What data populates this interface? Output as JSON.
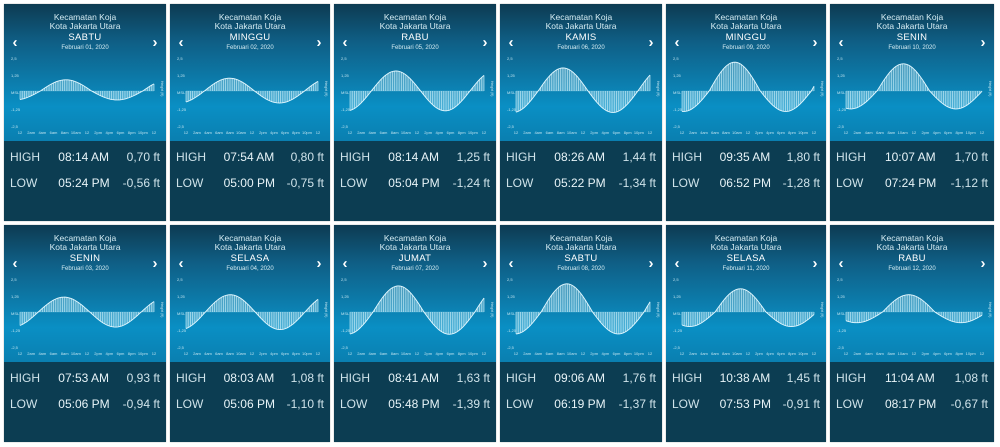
{
  "location": {
    "district": "Kecamatan Koja",
    "city": "Kota Jakarta Utara"
  },
  "labels": {
    "high": "HIGH",
    "low": "LOW"
  },
  "nav": {
    "prev_icon": "chevron-left-icon",
    "next_icon": "chevron-right-icon"
  },
  "colors": {
    "card_bg": "#0c3d52",
    "chart_top": "#0f5f86",
    "chart_bottom": "#0a8fc4",
    "curve": "#c9eef8"
  },
  "chart_data": {
    "type": "area",
    "y_ticks": [
      "2,5",
      "1,25",
      "MSL",
      "-1,25",
      "-2,5"
    ],
    "x_ticks": [
      "12",
      "2am",
      "4am",
      "6am",
      "8am",
      "10am",
      "12",
      "2pm",
      "4pm",
      "6pm",
      "8pm",
      "10pm",
      "12"
    ],
    "side_label": "Height (ft)"
  },
  "cards": [
    {
      "day": "SABTU",
      "date": "Februari 01, 2020",
      "high_time": "08:14 AM",
      "high_height": "0,70 ft",
      "low_time": "05:24 PM",
      "low_height": "-0,56 ft",
      "high_value": 0.7,
      "low_value": -0.56
    },
    {
      "day": "MINGGU",
      "date": "Februari 02, 2020",
      "high_time": "07:54 AM",
      "high_height": "0,80 ft",
      "low_time": "05:00 PM",
      "low_height": "-0,75 ft",
      "high_value": 0.8,
      "low_value": -0.75
    },
    {
      "day": "RABU",
      "date": "Februari 05, 2020",
      "high_time": "08:14 AM",
      "high_height": "1,25 ft",
      "low_time": "05:04 PM",
      "low_height": "-1,24 ft",
      "high_value": 1.25,
      "low_value": -1.24
    },
    {
      "day": "KAMIS",
      "date": "Februari 06, 2020",
      "high_time": "08:26 AM",
      "high_height": "1,44 ft",
      "low_time": "05:22 PM",
      "low_height": "-1,34 ft",
      "high_value": 1.44,
      "low_value": -1.34
    },
    {
      "day": "MINGGU",
      "date": "Februari 09, 2020",
      "high_time": "09:35 AM",
      "high_height": "1,80 ft",
      "low_time": "06:52 PM",
      "low_height": "-1,28 ft",
      "high_value": 1.8,
      "low_value": -1.28
    },
    {
      "day": "SENIN",
      "date": "Februari 10, 2020",
      "high_time": "10:07 AM",
      "high_height": "1,70 ft",
      "low_time": "07:24 PM",
      "low_height": "-1,12 ft",
      "high_value": 1.7,
      "low_value": -1.12
    },
    {
      "day": "SENIN",
      "date": "Februari 03, 2020",
      "high_time": "07:53 AM",
      "high_height": "0,93 ft",
      "low_time": "05:06 PM",
      "low_height": "-0,94 ft",
      "high_value": 0.93,
      "low_value": -0.94
    },
    {
      "day": "SELASA",
      "date": "Februari 04, 2020",
      "high_time": "08:03 AM",
      "high_height": "1,08 ft",
      "low_time": "05:06 PM",
      "low_height": "-1,10 ft",
      "high_value": 1.08,
      "low_value": -1.1
    },
    {
      "day": "JUMAT",
      "date": "Februari 07, 2020",
      "high_time": "08:41 AM",
      "high_height": "1,63 ft",
      "low_time": "05:48 PM",
      "low_height": "-1,39 ft",
      "high_value": 1.63,
      "low_value": -1.39
    },
    {
      "day": "SABTU",
      "date": "Februari 08, 2020",
      "high_time": "09:06 AM",
      "high_height": "1,76 ft",
      "low_time": "06:19 PM",
      "low_height": "-1,37 ft",
      "high_value": 1.76,
      "low_value": -1.37
    },
    {
      "day": "SELASA",
      "date": "Februari 11, 2020",
      "high_time": "10:38 AM",
      "high_height": "1,45 ft",
      "low_time": "07:53 PM",
      "low_height": "-0,91 ft",
      "high_value": 1.45,
      "low_value": -0.91
    },
    {
      "day": "RABU",
      "date": "Februari 12, 2020",
      "high_time": "11:04 AM",
      "high_height": "1,08 ft",
      "low_time": "08:17 PM",
      "low_height": "-0,67 ft",
      "high_value": 1.08,
      "low_value": -0.67
    }
  ]
}
